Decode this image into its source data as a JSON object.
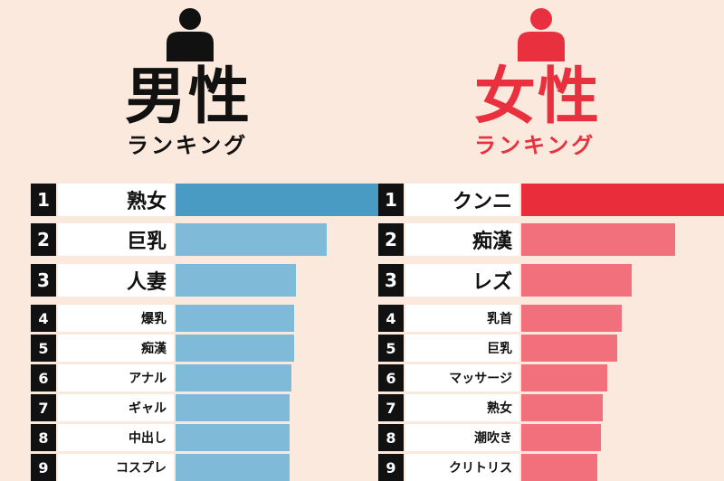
{
  "colors": {
    "background": "#fbe9dd",
    "male_accent": "#111111",
    "male_top_bar": "#4a9bc3",
    "male_bar": "#7fbad8",
    "female_accent": "#e8303f",
    "female_top_bar": "#e92d3b",
    "female_bar": "#f1707c",
    "rank_box": "#111111",
    "label_box": "#ffffff"
  },
  "male": {
    "icon": "person-icon",
    "title": "男性",
    "subtitle": "ランキング"
  },
  "female": {
    "icon": "person-icon",
    "title": "女性",
    "subtitle": "ランキング"
  },
  "chart_data": [
    {
      "type": "bar",
      "orientation": "horizontal",
      "title": "男性",
      "subtitle": "ランキング",
      "ranks": [
        "1",
        "2",
        "3",
        "4",
        "5",
        "6",
        "7",
        "8",
        "9"
      ],
      "categories": [
        "熟女",
        "巨乳",
        "人妻",
        "爆乳",
        "痴漢",
        "アナル",
        "ギャル",
        "中出し",
        "コスプレ"
      ],
      "values": [
        100,
        74,
        59,
        58,
        58,
        57,
        56,
        56,
        56
      ],
      "value_scale": "relative bar length (top = 100), no axis shown",
      "xlabel": "",
      "ylabel": "",
      "grid": false,
      "legend": "none"
    },
    {
      "type": "bar",
      "orientation": "horizontal",
      "title": "女性",
      "subtitle": "ランキング",
      "ranks": [
        "1",
        "2",
        "3",
        "4",
        "5",
        "6",
        "7",
        "8",
        "9"
      ],
      "categories": [
        "クンニ",
        "痴漢",
        "レズ",
        "乳首",
        "巨乳",
        "マッサージ",
        "熟女",
        "潮吹き",
        "クリトリス"
      ],
      "values": [
        100,
        75,
        54,
        49,
        47,
        42,
        40,
        39,
        37
      ],
      "value_scale": "relative bar length (top = 100), no axis shown",
      "xlabel": "",
      "ylabel": "",
      "grid": false,
      "legend": "none"
    }
  ]
}
